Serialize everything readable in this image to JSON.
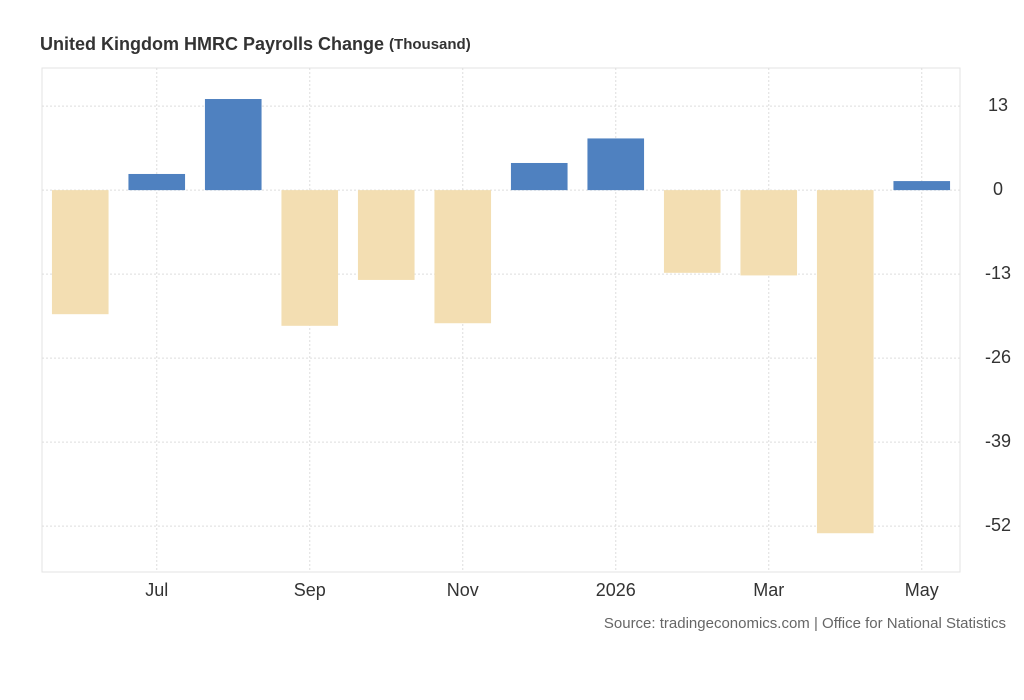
{
  "chart_data": {
    "type": "bar",
    "title": "United Kingdom HMRC Payrolls Change",
    "unit": "(Thousand)",
    "source": "Source: tradingeconomics.com | Office for National Statistics",
    "categories": [
      null,
      "Jul",
      null,
      "Sep",
      null,
      "Nov",
      null,
      "2026",
      null,
      "Mar",
      null,
      "May"
    ],
    "values": [
      -19.2,
      2.5,
      14.1,
      -21.0,
      -13.9,
      -20.6,
      4.2,
      8.0,
      -12.8,
      -13.2,
      -53.1,
      1.4
    ],
    "positive_color": "#4f81c0",
    "negative_color": "#f3deb2",
    "ylim": [
      -59.1,
      18.9
    ],
    "yticks": [
      13,
      0,
      -13,
      -26,
      -39,
      -52
    ],
    "grid": true
  }
}
